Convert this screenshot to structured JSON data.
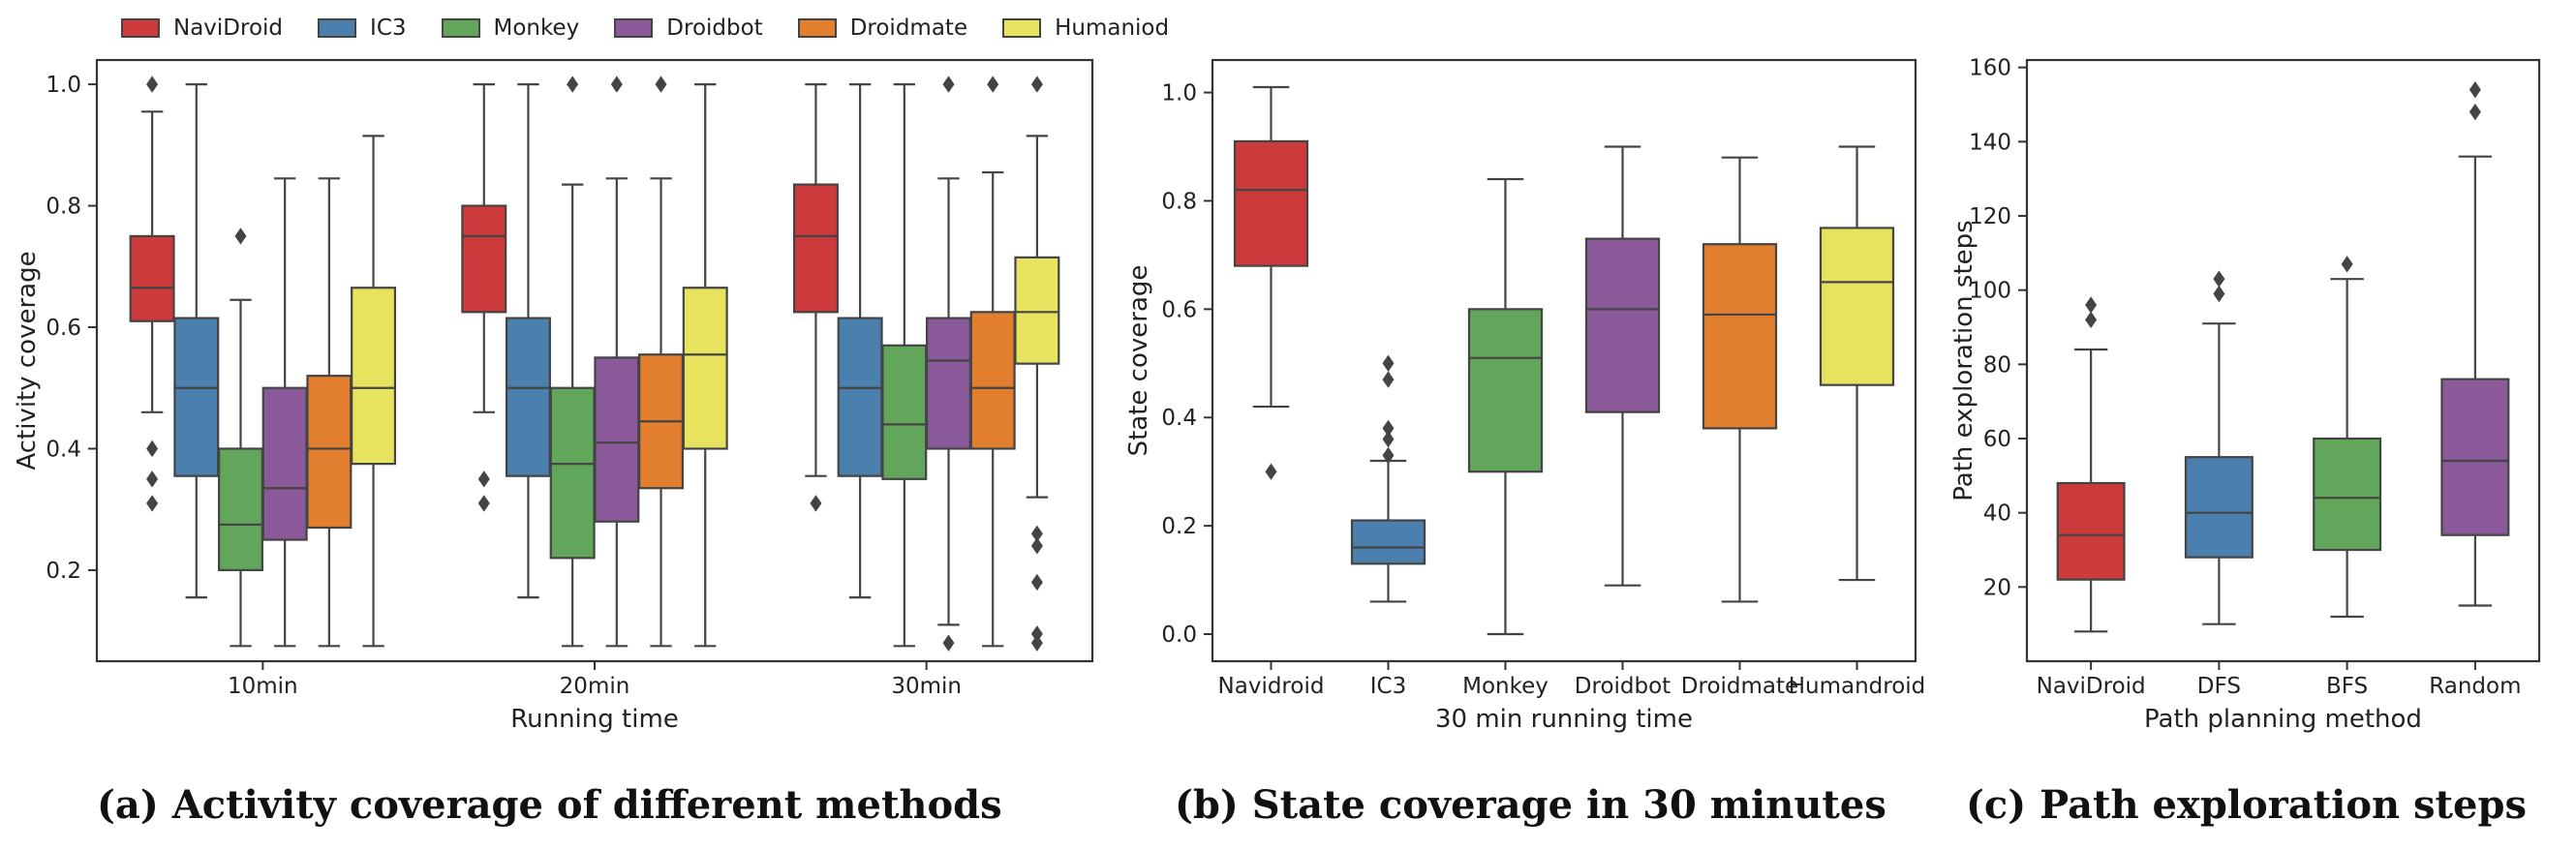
{
  "legend": [
    "NaviDroid",
    "IC3",
    "Monkey",
    "Droidbot",
    "Droidmate",
    "Humaniod"
  ],
  "colors": {
    "NaviDroid": "#cc3a3b",
    "IC3": "#4a7fae",
    "Monkey": "#62a65b",
    "Droidbot": "#8b5a9a",
    "Droidmate": "#e17f2f",
    "Humaniod": "#e8e35e",
    "DFS": "#4a7fae",
    "BFS": "#62a65b",
    "Random": "#8b5a9a"
  },
  "captions": {
    "a": "(a) Activity coverage of different methods",
    "b": "(b) State coverage in 30 minutes",
    "c": "(c) Path exploration steps"
  },
  "chart_data": [
    {
      "type": "box",
      "id": "a",
      "xlabel": "Running time",
      "ylabel": "Activity coverage",
      "ylim": [
        0.05,
        1.04
      ],
      "yticks": [
        0.2,
        0.4,
        0.6,
        0.8,
        1.0
      ],
      "ytick_labels": [
        "0.2",
        "0.4",
        "0.6",
        "0.8",
        "1.0"
      ],
      "categories": [
        "10min",
        "20min",
        "30min"
      ],
      "series": [
        {
          "name": "NaviDroid",
          "boxes": [
            {
              "whislo": 0.46,
              "q1": 0.61,
              "med": 0.665,
              "q3": 0.75,
              "whishi": 0.955,
              "fliers": [
                1.0,
                0.4,
                0.35,
                0.31
              ]
            },
            {
              "whislo": 0.46,
              "q1": 0.625,
              "med": 0.75,
              "q3": 0.8,
              "whishi": 1.0,
              "fliers": [
                0.35,
                0.31
              ]
            },
            {
              "whislo": 0.355,
              "q1": 0.625,
              "med": 0.75,
              "q3": 0.835,
              "whishi": 1.0,
              "fliers": [
                0.31
              ]
            }
          ]
        },
        {
          "name": "IC3",
          "boxes": [
            {
              "whislo": 0.155,
              "q1": 0.355,
              "med": 0.5,
              "q3": 0.615,
              "whishi": 1.0,
              "fliers": []
            },
            {
              "whislo": 0.155,
              "q1": 0.355,
              "med": 0.5,
              "q3": 0.615,
              "whishi": 1.0,
              "fliers": []
            },
            {
              "whislo": 0.155,
              "q1": 0.355,
              "med": 0.5,
              "q3": 0.615,
              "whishi": 1.0,
              "fliers": []
            }
          ]
        },
        {
          "name": "Monkey",
          "boxes": [
            {
              "whislo": 0.075,
              "q1": 0.2,
              "med": 0.275,
              "q3": 0.4,
              "whishi": 0.645,
              "fliers": [
                0.75
              ]
            },
            {
              "whislo": 0.075,
              "q1": 0.22,
              "med": 0.375,
              "q3": 0.5,
              "whishi": 0.835,
              "fliers": [
                1.0
              ]
            },
            {
              "whislo": 0.075,
              "q1": 0.35,
              "med": 0.44,
              "q3": 0.57,
              "whishi": 1.0,
              "fliers": []
            }
          ]
        },
        {
          "name": "Droidbot",
          "boxes": [
            {
              "whislo": 0.075,
              "q1": 0.25,
              "med": 0.335,
              "q3": 0.5,
              "whishi": 0.845,
              "fliers": []
            },
            {
              "whislo": 0.075,
              "q1": 0.28,
              "med": 0.41,
              "q3": 0.55,
              "whishi": 0.845,
              "fliers": [
                1.0
              ]
            },
            {
              "whislo": 0.11,
              "q1": 0.4,
              "med": 0.545,
              "q3": 0.615,
              "whishi": 0.845,
              "fliers": [
                1.0,
                0.08
              ]
            }
          ]
        },
        {
          "name": "Droidmate",
          "boxes": [
            {
              "whislo": 0.075,
              "q1": 0.27,
              "med": 0.4,
              "q3": 0.52,
              "whishi": 0.845,
              "fliers": []
            },
            {
              "whislo": 0.075,
              "q1": 0.335,
              "med": 0.445,
              "q3": 0.555,
              "whishi": 0.845,
              "fliers": [
                1.0
              ]
            },
            {
              "whislo": 0.075,
              "q1": 0.4,
              "med": 0.5,
              "q3": 0.625,
              "whishi": 0.855,
              "fliers": [
                1.0
              ]
            }
          ]
        },
        {
          "name": "Humaniod",
          "boxes": [
            {
              "whislo": 0.075,
              "q1": 0.375,
              "med": 0.5,
              "q3": 0.665,
              "whishi": 0.915,
              "fliers": []
            },
            {
              "whislo": 0.075,
              "q1": 0.4,
              "med": 0.555,
              "q3": 0.665,
              "whishi": 1.0,
              "fliers": []
            },
            {
              "whislo": 0.32,
              "q1": 0.54,
              "med": 0.625,
              "q3": 0.715,
              "whishi": 0.915,
              "fliers": [
                1.0,
                0.26,
                0.24,
                0.18,
                0.095,
                0.08
              ]
            }
          ]
        }
      ]
    },
    {
      "type": "box",
      "id": "b",
      "xlabel": "30 min running time",
      "ylabel": "State coverage",
      "ylim": [
        -0.05,
        1.06
      ],
      "yticks": [
        0.0,
        0.2,
        0.4,
        0.6,
        0.8,
        1.0
      ],
      "ytick_labels": [
        "0.0",
        "0.2",
        "0.4",
        "0.6",
        "0.8",
        "1.0"
      ],
      "categories": [
        "Navidroid",
        "IC3",
        "Monkey",
        "Droidbot",
        "Droidmate",
        "Humandroid"
      ],
      "boxes": [
        {
          "color_key": "NaviDroid",
          "whislo": 0.42,
          "q1": 0.68,
          "med": 0.82,
          "q3": 0.91,
          "whishi": 1.01,
          "fliers": [
            0.3
          ]
        },
        {
          "color_key": "IC3",
          "whislo": 0.06,
          "q1": 0.13,
          "med": 0.16,
          "q3": 0.21,
          "whishi": 0.32,
          "fliers": [
            0.33,
            0.36,
            0.38,
            0.47,
            0.5
          ]
        },
        {
          "color_key": "Monkey",
          "whislo": 0.0,
          "q1": 0.3,
          "med": 0.51,
          "q3": 0.6,
          "whishi": 0.84,
          "fliers": []
        },
        {
          "color_key": "Droidbot",
          "whislo": 0.09,
          "q1": 0.41,
          "med": 0.6,
          "q3": 0.73,
          "whishi": 0.9,
          "fliers": []
        },
        {
          "color_key": "Droidmate",
          "whislo": 0.06,
          "q1": 0.38,
          "med": 0.59,
          "q3": 0.72,
          "whishi": 0.88,
          "fliers": []
        },
        {
          "color_key": "Humaniod",
          "whislo": 0.1,
          "q1": 0.46,
          "med": 0.65,
          "q3": 0.75,
          "whishi": 0.9,
          "fliers": []
        }
      ]
    },
    {
      "type": "box",
      "id": "c",
      "xlabel": "Path planning method",
      "ylabel": "Path exploration steps",
      "ylim": [
        0,
        162
      ],
      "yticks": [
        20,
        40,
        60,
        80,
        100,
        120,
        140,
        160
      ],
      "ytick_labels": [
        "20",
        "40",
        "60",
        "80",
        "100",
        "120",
        "140",
        "160"
      ],
      "categories": [
        "NaviDroid",
        "DFS",
        "BFS",
        "Random"
      ],
      "boxes": [
        {
          "color_key": "NaviDroid",
          "whislo": 8,
          "q1": 22,
          "med": 34,
          "q3": 48,
          "whishi": 84,
          "fliers": [
            92,
            96
          ]
        },
        {
          "color_key": "DFS",
          "whislo": 10,
          "q1": 28,
          "med": 40,
          "q3": 55,
          "whishi": 91,
          "fliers": [
            99,
            103
          ]
        },
        {
          "color_key": "BFS",
          "whislo": 12,
          "q1": 30,
          "med": 44,
          "q3": 60,
          "whishi": 103,
          "fliers": [
            107
          ]
        },
        {
          "color_key": "Random",
          "whislo": 15,
          "q1": 34,
          "med": 54,
          "q3": 76,
          "whishi": 136,
          "fliers": [
            148,
            154
          ]
        }
      ]
    }
  ]
}
